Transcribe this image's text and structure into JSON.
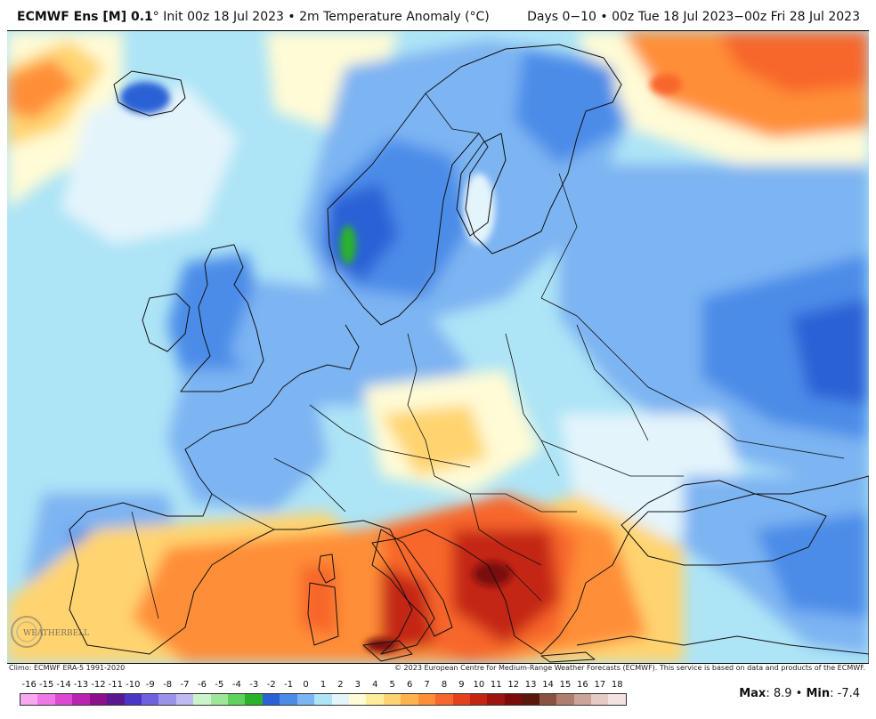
{
  "header": {
    "model": "ECMWF Ens [M] 0.1",
    "init_suffix": "° Init 00z 18 Jul 2023  •  2m Temperature Anomaly (°C)",
    "period": "Days 0−10  •  00z Tue 18 Jul 2023−00z Fri 28 Jul 2023"
  },
  "credits": {
    "climo": "Climo: ECMWF ERA-5 1991-2020",
    "copyright": "© 2023 European Centre for Medium-Range Weather Forecasts (ECMWF). This service is based on data and products of the ECMWF."
  },
  "watermark": {
    "text": "WEATHERBELL"
  },
  "legend": {
    "labels": [
      "-16",
      "-15",
      "-14",
      "-13",
      "-12",
      "-11",
      "-10",
      "-9",
      "-8",
      "-7",
      "-6",
      "-5",
      "-4",
      "-3",
      "-2",
      "-1",
      "0",
      "1",
      "2",
      "3",
      "4",
      "5",
      "6",
      "7",
      "8",
      "9",
      "10",
      "11",
      "12",
      "13",
      "14",
      "15",
      "16",
      "17",
      "18"
    ],
    "colors": [
      "#f7a8f0",
      "#ee78e6",
      "#dc48d4",
      "#bb22b4",
      "#8e0f8c",
      "#5a1890",
      "#4a36c6",
      "#6e63dc",
      "#9b93ea",
      "#bfbaf2",
      "#ccf4cc",
      "#9ee79a",
      "#5fd15d",
      "#2ab22a",
      "#2a62d6",
      "#4b8ce8",
      "#7db4f2",
      "#ade4f6",
      "#e4f4fb",
      "#fffbd6",
      "#ffed9c",
      "#ffd470",
      "#ffb24e",
      "#ff8e38",
      "#f7662a",
      "#e3411c",
      "#c42512",
      "#9e1410",
      "#7a0c0a",
      "#5a180c",
      "#8a5240",
      "#b07e6e",
      "#cda49a",
      "#e6cac4",
      "#f3e2de"
    ]
  },
  "stats": {
    "max_label": "Max",
    "max_value": "8.9",
    "min_label": "Min",
    "min_value": "-7.4"
  },
  "map_colors": {
    "cold_deep": "#2a62d6",
    "cold": "#4b8ce8",
    "cool": "#7db4f2",
    "cool_light": "#ade4f6",
    "near_zero": "#e4f4fb",
    "warm_light": "#fffbd6",
    "warm": "#ffd470",
    "warm_orange": "#ff8e38",
    "hot": "#f7662a",
    "very_hot": "#c42512",
    "extreme": "#7a0c0a",
    "cold_peak": "#2ab22a"
  }
}
